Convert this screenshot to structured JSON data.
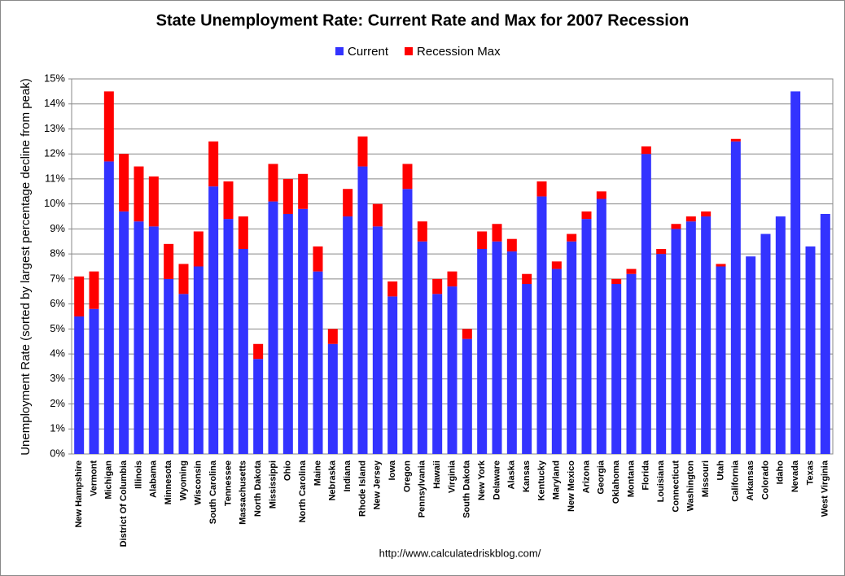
{
  "chart_data": {
    "type": "stacked_bar",
    "title": "State Unemployment Rate: Current Rate and Max for 2007 Recession",
    "y_label": "Unemployment Rate (sorted by largest percentage decline from peak)",
    "source": "http://www.calculatedriskblog.com/",
    "categories": [
      "New Hampshire",
      "Vermont",
      "Michigan",
      "District Of Columbia",
      "Illinois",
      "Alabama",
      "Minnesota",
      "Wyoming",
      "Wisconsin",
      "South Carolina",
      "Tennessee",
      "Massachusetts",
      "North Dakota",
      "Mississippi",
      "Ohio",
      "North Carolina",
      "Maine",
      "Nebraska",
      "Indiana",
      "Rhode Island",
      "New Jersey",
      "Iowa",
      "Oregon",
      "Pennsylvania",
      "Hawaii",
      "Virginia",
      "South Dakota",
      "New York",
      "Delaware",
      "Alaska",
      "Kansas",
      "Kentucky",
      "Maryland",
      "New Mexico",
      "Arizona",
      "Georgia",
      "Oklahoma",
      "Montana",
      "Florida",
      "Louisiana",
      "Connecticut",
      "Washington",
      "Missouri",
      "Utah",
      "California",
      "Arkansas",
      "Colorado",
      "Idaho",
      "Nevada",
      "Texas",
      "West Virginia"
    ],
    "series": [
      {
        "name": "Current",
        "color": "#3333ff",
        "values": [
          5.5,
          5.8,
          11.7,
          9.7,
          9.3,
          9.1,
          7.0,
          6.4,
          7.5,
          10.7,
          9.4,
          8.2,
          3.8,
          10.1,
          9.6,
          9.8,
          7.3,
          4.4,
          9.5,
          11.5,
          9.1,
          6.3,
          10.6,
          8.5,
          6.4,
          6.7,
          4.6,
          8.2,
          8.5,
          8.1,
          6.8,
          10.3,
          7.4,
          8.5,
          9.4,
          10.2,
          6.8,
          7.2,
          12.0,
          8.0,
          9.0,
          9.3,
          9.5,
          7.5,
          12.5,
          7.9,
          8.8,
          9.5,
          14.5,
          8.3,
          9.6
        ]
      },
      {
        "name": "Recession Max",
        "color": "#ff0000",
        "values": [
          1.6,
          1.5,
          2.8,
          2.3,
          2.2,
          2.0,
          1.4,
          1.2,
          1.4,
          1.8,
          1.5,
          1.3,
          0.6,
          1.5,
          1.4,
          1.4,
          1.0,
          0.6,
          1.1,
          1.2,
          0.9,
          0.6,
          1.0,
          0.8,
          0.6,
          0.6,
          0.4,
          0.7,
          0.7,
          0.5,
          0.4,
          0.6,
          0.3,
          0.3,
          0.3,
          0.3,
          0.2,
          0.2,
          0.3,
          0.2,
          0.2,
          0.2,
          0.2,
          0.1,
          0.1,
          0,
          0,
          0,
          0,
          0,
          0
        ]
      }
    ],
    "ylim": [
      0,
      15
    ],
    "yticks": [
      {
        "value": 0,
        "label": "0%"
      },
      {
        "value": 1,
        "label": "1%"
      },
      {
        "value": 2,
        "label": "2%"
      },
      {
        "value": 3,
        "label": "3%"
      },
      {
        "value": 4,
        "label": "4%"
      },
      {
        "value": 5,
        "label": "5%"
      },
      {
        "value": 6,
        "label": "6%"
      },
      {
        "value": 7,
        "label": "7%"
      },
      {
        "value": 8,
        "label": "8%"
      },
      {
        "value": 9,
        "label": "9%"
      },
      {
        "value": 10,
        "label": "10%"
      },
      {
        "value": 11,
        "label": "11%"
      },
      {
        "value": 12,
        "label": "12%"
      },
      {
        "value": 13,
        "label": "13%"
      },
      {
        "value": 14,
        "label": "14%"
      },
      {
        "value": 15,
        "label": "15%"
      }
    ],
    "grid": true,
    "legend": "top"
  }
}
